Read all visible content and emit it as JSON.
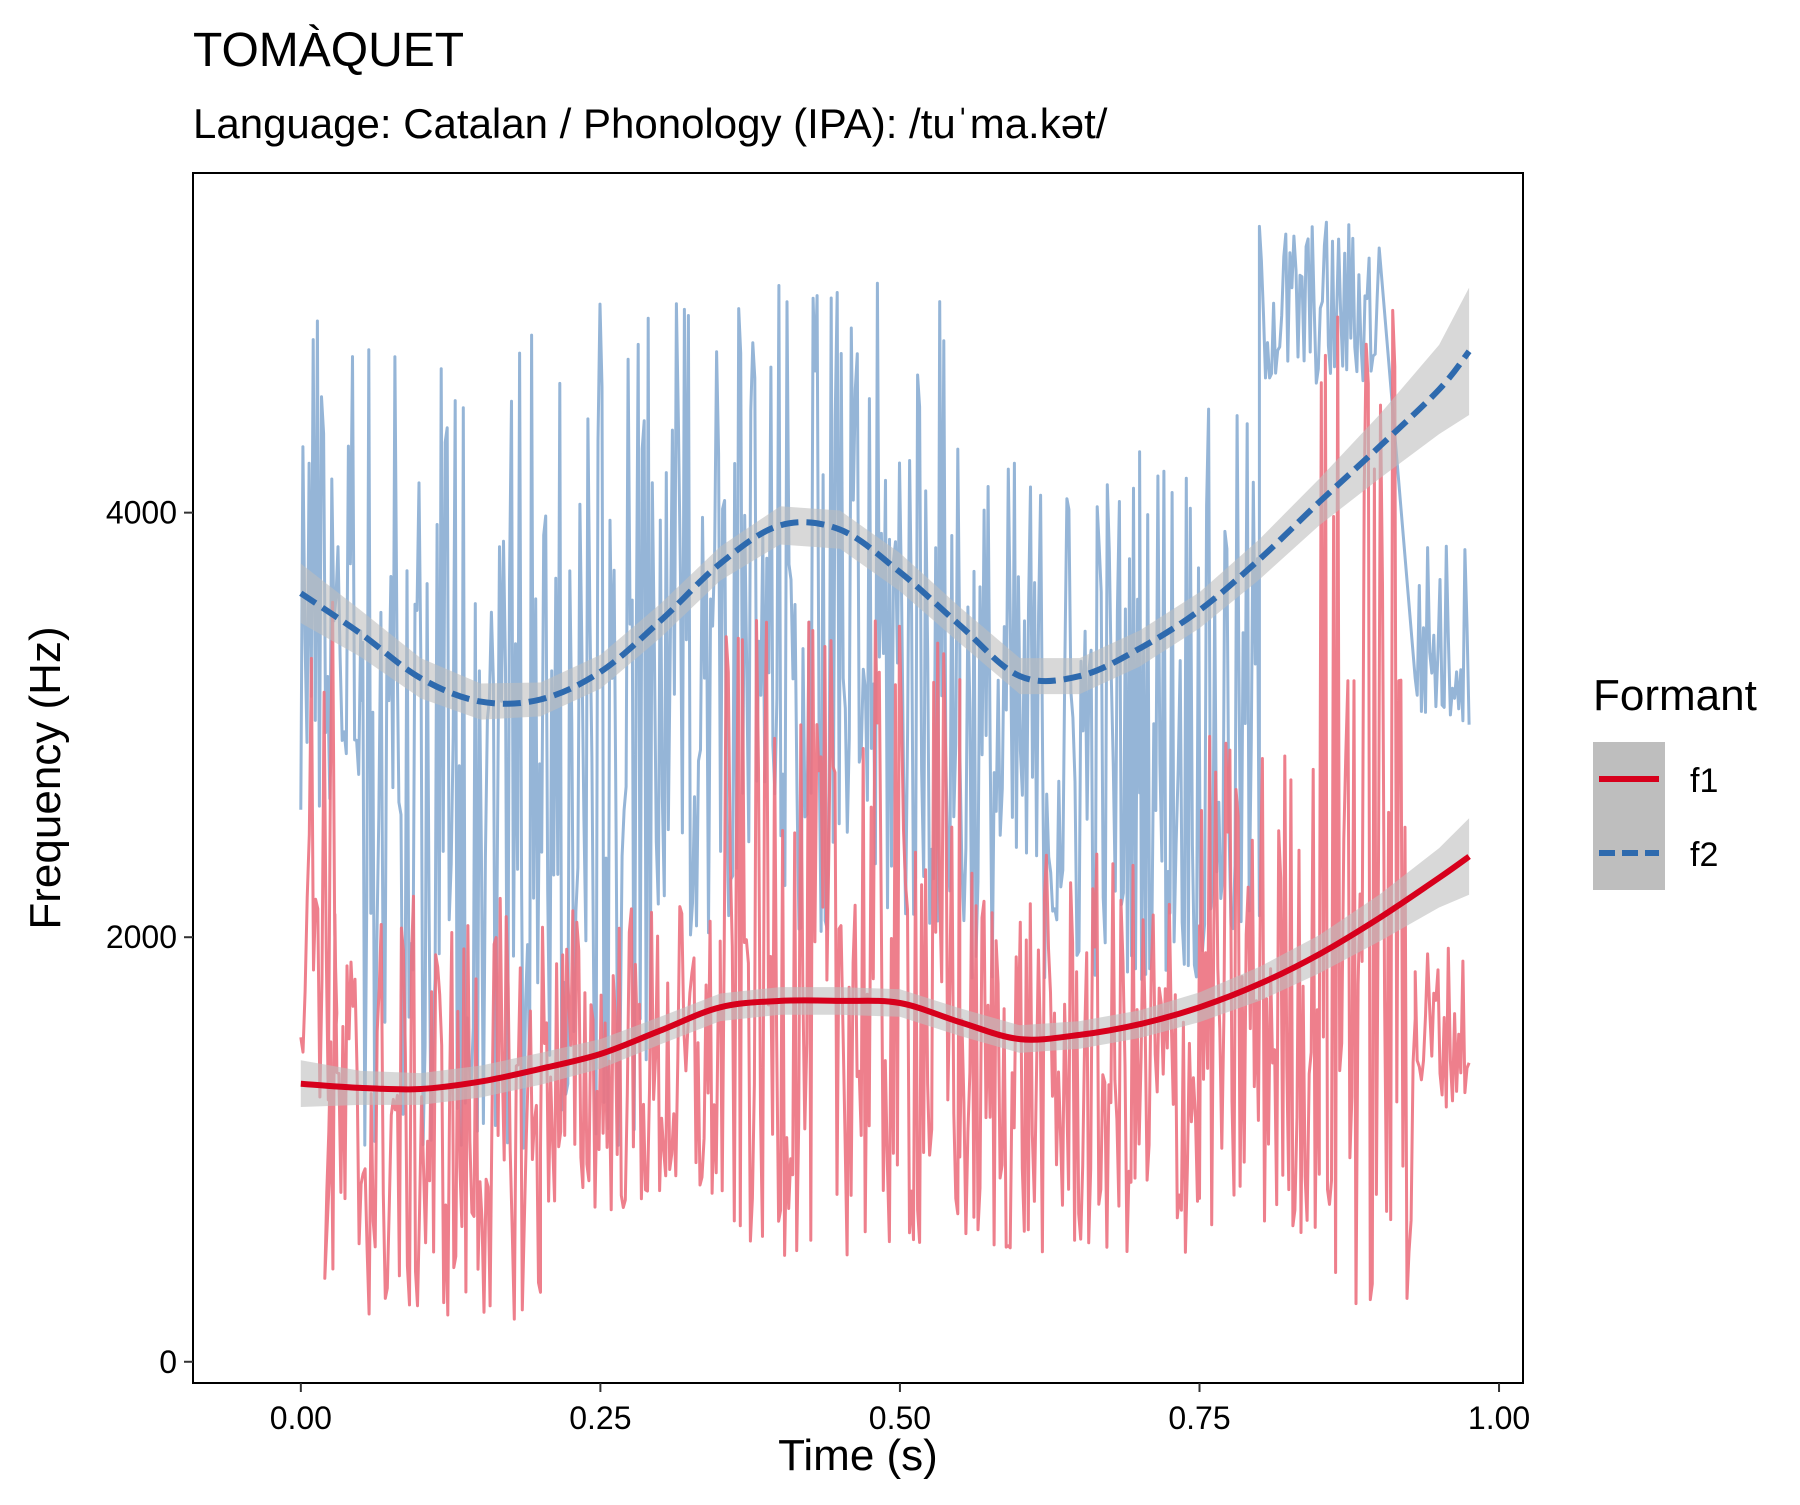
{
  "chart_data": {
    "type": "line",
    "title": "TOMÀQUET",
    "subtitle": "Language: Catalan / Phonology (IPA): /tuˈma.kət/",
    "xlabel": "Time (s)",
    "ylabel": "Frequency (Hz)",
    "xlim": [
      -0.09,
      1.02
    ],
    "ylim": [
      -100,
      5600
    ],
    "x_ticks": [
      0,
      0.25,
      0.5,
      0.75,
      1
    ],
    "x_tick_labels": [
      "0.00",
      "0.25",
      "0.50",
      "0.75",
      "1.00"
    ],
    "y_ticks": [
      0,
      2000,
      4000
    ],
    "y_tick_labels": [
      "0",
      "2000",
      "4000"
    ],
    "grid": false,
    "legend": {
      "title": "Formant",
      "position": "right",
      "entries": [
        {
          "label": "f1",
          "color": "#D7001C",
          "dash": "solid"
        },
        {
          "label": "f2",
          "color": "#2E6AAE",
          "dash": "dashed"
        }
      ]
    },
    "raw_colors": {
      "f1": "#EC7180",
      "f2": "#8AADD3"
    },
    "band_color": "#BEBEBE",
    "series": [
      {
        "name": "f1",
        "raw_ranges": [
          {
            "x": [
              0.0,
              0.03
            ],
            "y": [
              1200,
              3700
            ]
          },
          {
            "x": [
              0.02,
              0.2
            ],
            "y": [
              200,
              2200
            ]
          },
          {
            "x": [
              0.2,
              0.35
            ],
            "y": [
              700,
              2200
            ]
          },
          {
            "x": [
              0.35,
              0.55
            ],
            "y": [
              500,
              3500
            ]
          },
          {
            "x": [
              0.55,
              0.75
            ],
            "y": [
              500,
              2400
            ]
          },
          {
            "x": [
              0.75,
              0.85
            ],
            "y": [
              600,
              3000
            ]
          },
          {
            "x": [
              0.85,
              0.93
            ],
            "y": [
              200,
              5100
            ]
          },
          {
            "x": [
              0.93,
              0.975
            ],
            "y": [
              1200,
              2000
            ]
          }
        ],
        "smooth": {
          "x": [
            0.0,
            0.05,
            0.1,
            0.15,
            0.2,
            0.25,
            0.3,
            0.35,
            0.4,
            0.45,
            0.5,
            0.55,
            0.6,
            0.65,
            0.7,
            0.75,
            0.8,
            0.85,
            0.9,
            0.95,
            0.975
          ],
          "y": [
            1310,
            1290,
            1285,
            1320,
            1380,
            1450,
            1560,
            1670,
            1700,
            1700,
            1690,
            1600,
            1520,
            1540,
            1590,
            1670,
            1780,
            1920,
            2090,
            2280,
            2380
          ],
          "se": [
            110,
            80,
            75,
            75,
            75,
            70,
            65,
            65,
            65,
            65,
            65,
            65,
            65,
            65,
            65,
            70,
            80,
            90,
            110,
            140,
            180
          ]
        }
      },
      {
        "name": "f2",
        "raw_ranges": [
          {
            "x": [
              0.0,
              0.05
            ],
            "y": [
              2600,
              5000
            ]
          },
          {
            "x": [
              0.05,
              0.3
            ],
            "y": [
              1000,
              5000
            ]
          },
          {
            "x": [
              0.3,
              0.55
            ],
            "y": [
              2000,
              5100
            ]
          },
          {
            "x": [
              0.55,
              0.7
            ],
            "y": [
              1800,
              4300
            ]
          },
          {
            "x": [
              0.7,
              0.8
            ],
            "y": [
              1800,
              4500
            ]
          },
          {
            "x": [
              0.8,
              0.9
            ],
            "y": [
              4600,
              5400
            ]
          },
          {
            "x": [
              0.93,
              0.975
            ],
            "y": [
              3000,
              3900
            ]
          }
        ],
        "smooth": {
          "x": [
            0.0,
            0.05,
            0.1,
            0.15,
            0.2,
            0.25,
            0.3,
            0.35,
            0.4,
            0.45,
            0.5,
            0.55,
            0.6,
            0.65,
            0.7,
            0.75,
            0.8,
            0.85,
            0.9,
            0.95,
            0.975
          ],
          "y": [
            3620,
            3430,
            3220,
            3110,
            3120,
            3250,
            3490,
            3760,
            3940,
            3920,
            3720,
            3470,
            3230,
            3230,
            3360,
            3540,
            3780,
            4050,
            4310,
            4580,
            4760
          ],
          "se": [
            140,
            110,
            95,
            85,
            80,
            80,
            80,
            80,
            90,
            90,
            90,
            85,
            85,
            85,
            85,
            85,
            95,
            110,
            150,
            210,
            300
          ]
        }
      }
    ]
  }
}
